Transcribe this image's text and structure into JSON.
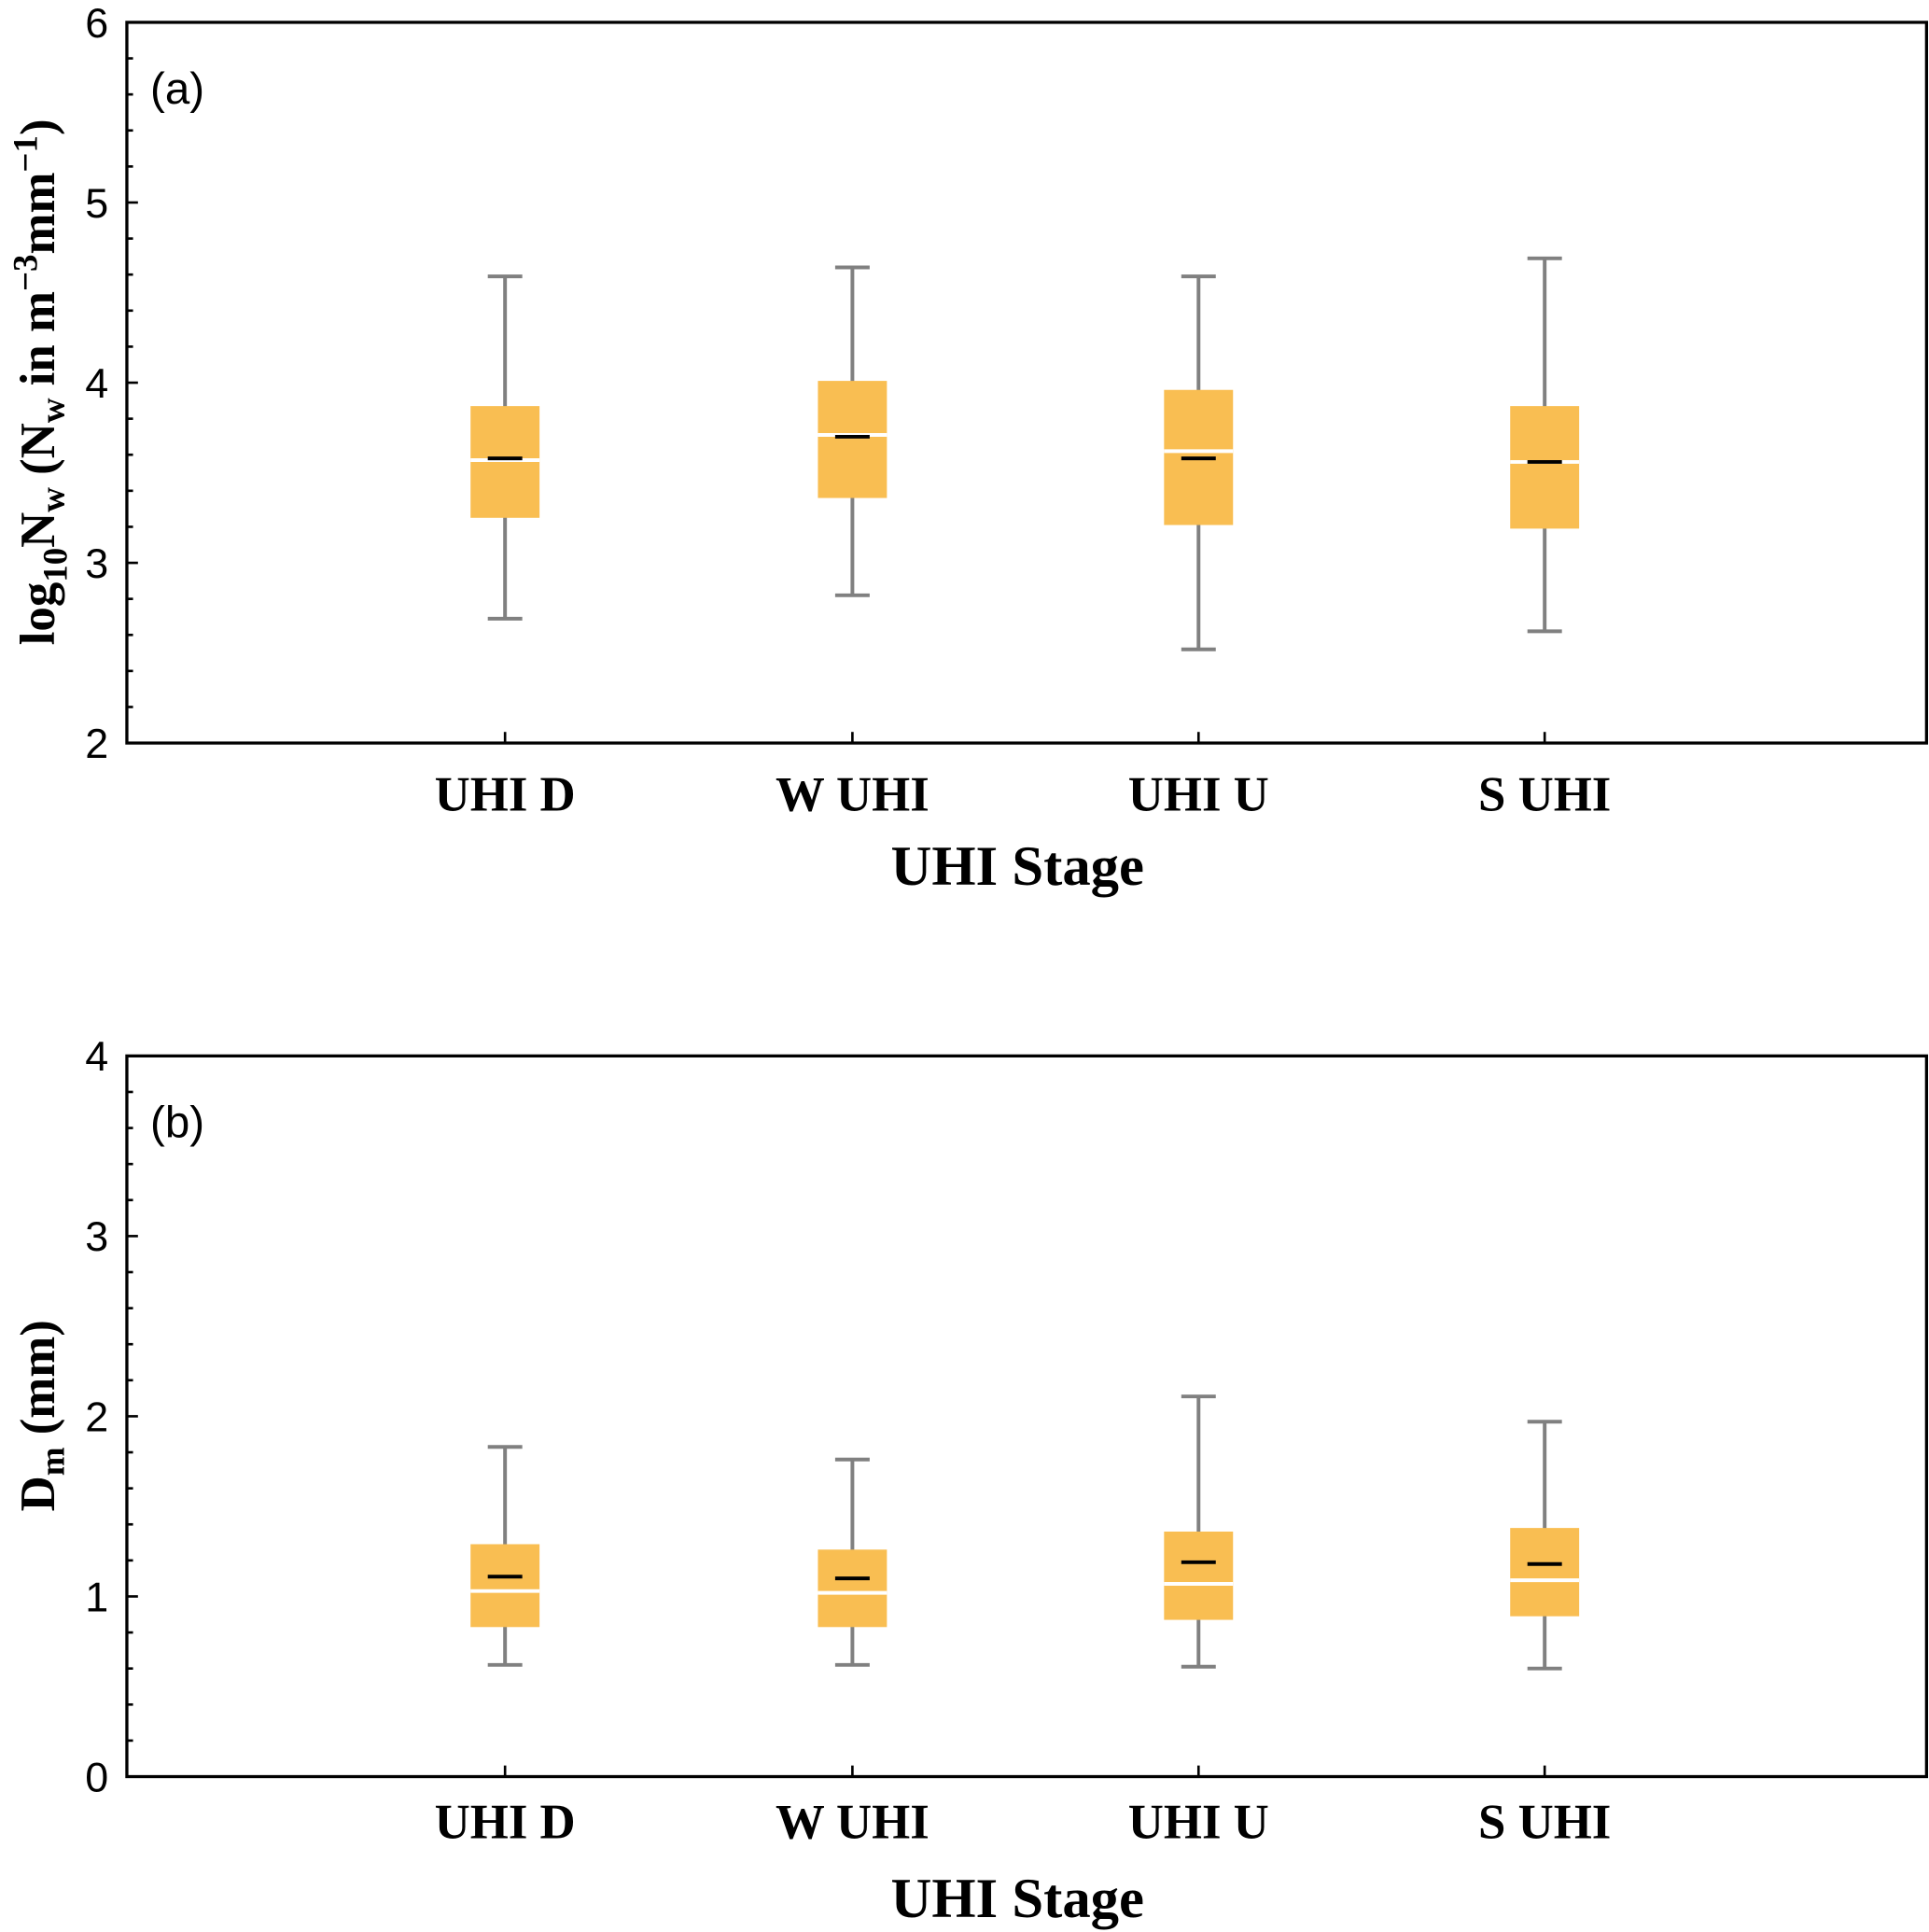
{
  "colors": {
    "box": "#F9BE52",
    "whisker": "#808080",
    "median": "#FFFFFF",
    "mean": "#000000"
  },
  "chart_data": [
    {
      "type": "box",
      "panel_label": "(a)",
      "categories": [
        "UHI D",
        "W UHI",
        "UHI U",
        "S UHI"
      ],
      "xlabel": "UHI Stage",
      "ylabel": "log10Nw (Nw in m-3mm-1)",
      "ylabel_parts": {
        "log": "log",
        "log_sub": "10",
        "N": "N",
        "N_sub": "w",
        "open": " (N",
        "open_sub": "w",
        "mid": " in m",
        "exp1": "−3",
        "mm": "mm",
        "exp2": "−1",
        "close": ")"
      },
      "ylim": [
        2,
        6
      ],
      "yticks": [
        2,
        3,
        4,
        5,
        6
      ],
      "boxes": [
        {
          "whisker_low": 2.69,
          "q1": 3.25,
          "median": 3.57,
          "mean": 3.58,
          "q3": 3.87,
          "whisker_high": 4.59
        },
        {
          "whisker_low": 2.82,
          "q1": 3.36,
          "median": 3.71,
          "mean": 3.7,
          "q3": 4.01,
          "whisker_high": 4.64
        },
        {
          "whisker_low": 2.52,
          "q1": 3.21,
          "median": 3.62,
          "mean": 3.58,
          "q3": 3.96,
          "whisker_high": 4.59
        },
        {
          "whisker_low": 2.62,
          "q1": 3.19,
          "median": 3.56,
          "mean": 3.56,
          "q3": 3.87,
          "whisker_high": 4.69
        }
      ]
    },
    {
      "type": "box",
      "panel_label": "(b)",
      "categories": [
        "UHI D",
        "W UHI",
        "UHI U",
        "S UHI"
      ],
      "xlabel": "UHI Stage",
      "ylabel": "Dm (mm)",
      "ylabel_parts": {
        "D": "D",
        "D_sub": "m",
        "rest": " (mm)"
      },
      "ylim": [
        0,
        4
      ],
      "yticks": [
        0,
        1,
        2,
        3,
        4
      ],
      "boxes": [
        {
          "whisker_low": 0.62,
          "q1": 0.83,
          "median": 1.03,
          "mean": 1.11,
          "q3": 1.29,
          "whisker_high": 1.83
        },
        {
          "whisker_low": 0.62,
          "q1": 0.83,
          "median": 1.02,
          "mean": 1.1,
          "q3": 1.26,
          "whisker_high": 1.76
        },
        {
          "whisker_low": 0.61,
          "q1": 0.87,
          "median": 1.07,
          "mean": 1.19,
          "q3": 1.36,
          "whisker_high": 2.11
        },
        {
          "whisker_low": 0.6,
          "q1": 0.89,
          "median": 1.09,
          "mean": 1.18,
          "q3": 1.38,
          "whisker_high": 1.97
        }
      ]
    }
  ]
}
